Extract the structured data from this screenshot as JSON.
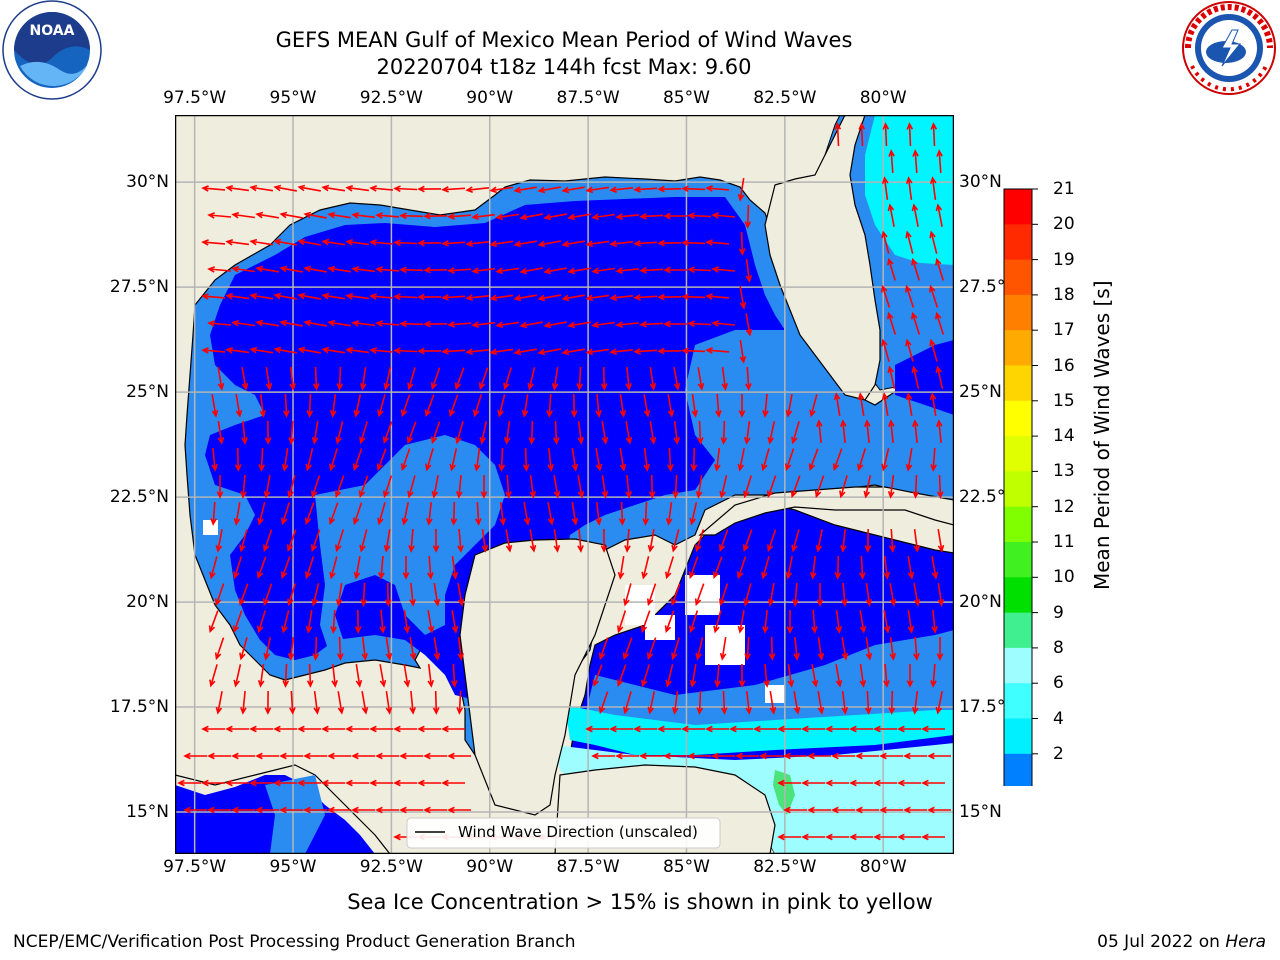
{
  "header": {
    "title_line1": "GEFS MEAN Gulf of Mexico Mean Period of Wind Waves",
    "title_line2": "20220704 t18z 144h fcst   Max: 9.60"
  },
  "logos": {
    "left": {
      "name": "noaa-logo",
      "text": "NOAA",
      "ring_text": "NATIONAL OCEANIC AND ATMOSPHERIC ADMINISTRATION · U.S. DEPARTMENT OF COMMERCE"
    },
    "right": {
      "name": "nws-logo",
      "ring_text": "NATIONAL WEATHER SERVICE"
    }
  },
  "map": {
    "lon_ticks": [
      "97.5°W",
      "95°W",
      "92.5°W",
      "90°W",
      "87.5°W",
      "85°W",
      "82.5°W",
      "80°W"
    ],
    "lon_values": [
      -97.5,
      -95,
      -92.5,
      -90,
      -87.5,
      -85,
      -82.5,
      -80
    ],
    "lat_ticks": [
      "30°N",
      "27.5°N",
      "25°N",
      "22.5°N",
      "20°N",
      "17.5°N",
      "15°N"
    ],
    "lat_values": [
      30,
      27.5,
      25,
      22.5,
      20,
      17.5,
      15
    ],
    "lon_range": [
      -98,
      -78.2
    ],
    "lat_range": [
      14,
      31.6
    ],
    "legend_label": "Wind Wave Direction (unscaled)",
    "colors": {
      "land": "#efedde",
      "deep_blue": "#0000fe",
      "mid_blue": "#2a8cf0",
      "cyan": "#00f5ff",
      "light_cyan": "#9dfdff",
      "green": "#4de37b",
      "arrow": "#ff0000",
      "grid": "#b5b5b5"
    }
  },
  "colorbar": {
    "title": "Mean Period of Wind Waves [s]",
    "labels": [
      "21",
      "20",
      "19",
      "18",
      "17",
      "16",
      "15",
      "14",
      "13",
      "12",
      "11",
      "10",
      "9",
      "8",
      "6",
      "4",
      "2"
    ],
    "colors": [
      "#ff0000",
      "#ff2a00",
      "#ff5500",
      "#ff8000",
      "#ffaa00",
      "#ffd500",
      "#ffff00",
      "#e0ff00",
      "#bfff00",
      "#80ff00",
      "#40f020",
      "#00e000",
      "#40f090",
      "#9dfdff",
      "#40ffff",
      "#00f0ff",
      "#0080ff"
    ],
    "extend_color": "#0000ff"
  },
  "subtitle": "Sea Ice Concentration > 15% is shown in pink to yellow",
  "footer": {
    "left": "NCEP/EMC/Verification Post Processing Product Generation Branch",
    "date": "05 Jul 2022 on ",
    "host": "Hera"
  }
}
